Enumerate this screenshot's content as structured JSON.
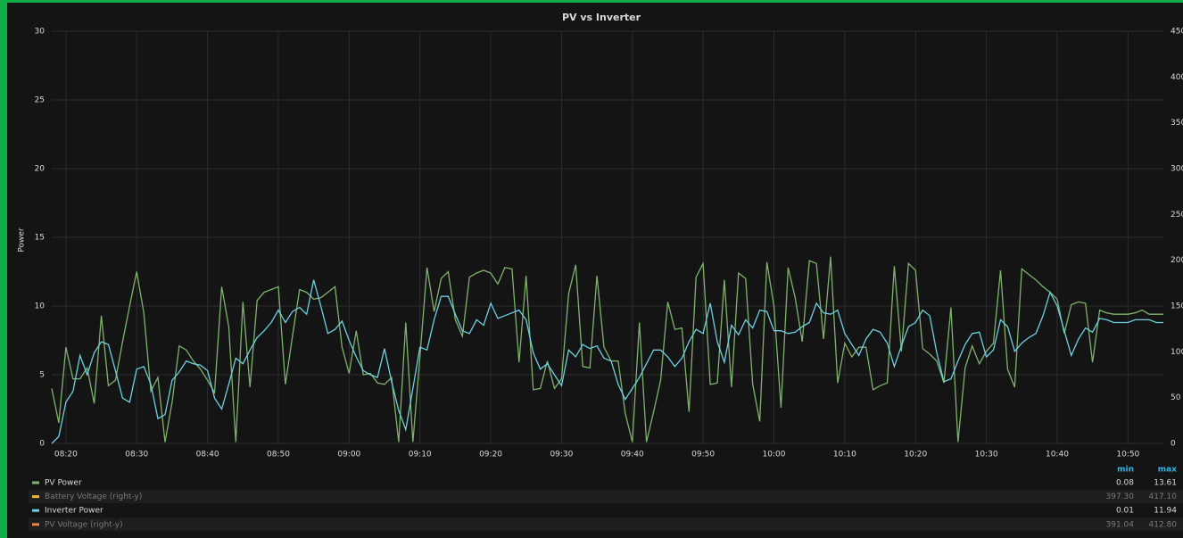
{
  "chart_data": {
    "type": "line",
    "title": "PV vs Inverter",
    "y_label": "Power",
    "x": [
      "08:18",
      "08:19",
      "08:20",
      "08:21",
      "08:22",
      "08:23",
      "08:24",
      "08:25",
      "08:26",
      "08:27",
      "08:28",
      "08:29",
      "08:30",
      "08:31",
      "08:32",
      "08:33",
      "08:34",
      "08:35",
      "08:36",
      "08:37",
      "08:38",
      "08:39",
      "08:40",
      "08:41",
      "08:42",
      "08:43",
      "08:44",
      "08:45",
      "08:46",
      "08:47",
      "08:48",
      "08:49",
      "08:50",
      "08:51",
      "08:52",
      "08:53",
      "08:54",
      "08:55",
      "08:56",
      "08:57",
      "08:58",
      "08:59",
      "09:00",
      "09:01",
      "09:02",
      "09:03",
      "09:04",
      "09:05",
      "09:06",
      "09:07",
      "09:08",
      "09:09",
      "09:10",
      "09:11",
      "09:12",
      "09:13",
      "09:14",
      "09:15",
      "09:16",
      "09:17",
      "09:18",
      "09:19",
      "09:20",
      "09:21",
      "09:22",
      "09:23",
      "09:24",
      "09:25",
      "09:26",
      "09:27",
      "09:28",
      "09:29",
      "09:30",
      "09:31",
      "09:32",
      "09:33",
      "09:34",
      "09:35",
      "09:36",
      "09:37",
      "09:38",
      "09:39",
      "09:40",
      "09:41",
      "09:42",
      "09:43",
      "09:44",
      "09:45",
      "09:46",
      "09:47",
      "09:48",
      "09:49",
      "09:50",
      "09:51",
      "09:52",
      "09:53",
      "09:54",
      "09:55",
      "09:56",
      "09:57",
      "09:58",
      "09:59",
      "10:00",
      "10:01",
      "10:02",
      "10:03",
      "10:04",
      "10:05",
      "10:06",
      "10:07",
      "10:08",
      "10:09",
      "10:10",
      "10:11",
      "10:12",
      "10:13",
      "10:14",
      "10:15",
      "10:16",
      "10:17",
      "10:18",
      "10:19",
      "10:20",
      "10:21",
      "10:22",
      "10:23",
      "10:24",
      "10:25",
      "10:26",
      "10:27",
      "10:28",
      "10:29",
      "10:30",
      "10:31",
      "10:32",
      "10:33",
      "10:34",
      "10:35",
      "10:36",
      "10:37",
      "10:38",
      "10:39",
      "10:40",
      "10:41",
      "10:42",
      "10:43",
      "10:44",
      "10:45",
      "10:46",
      "10:47",
      "10:48",
      "10:49",
      "10:50",
      "10:51",
      "10:52",
      "10:53",
      "10:54",
      "10:55"
    ],
    "xlim": [
      "08:18",
      "10:55"
    ],
    "xticks": [
      "08:20",
      "08:30",
      "08:40",
      "08:50",
      "09:00",
      "09:10",
      "09:20",
      "09:30",
      "09:40",
      "09:50",
      "10:00",
      "10:10",
      "10:20",
      "10:30",
      "10:40",
      "10:50"
    ],
    "ylim": [
      0,
      30
    ],
    "yticks": [
      0,
      5,
      10,
      15,
      20,
      25,
      30
    ],
    "y2lim": [
      0,
      450
    ],
    "y2ticks": [
      0,
      50,
      100,
      150,
      200,
      250,
      300,
      350,
      400,
      450
    ],
    "grid": true,
    "legend_headers": [
      "min",
      "max"
    ],
    "series": [
      {
        "name": "PV Power",
        "color": "#7eb26d",
        "min": "0.08",
        "max": "13.61",
        "values": [
          4,
          1.5,
          7,
          4.7,
          4.7,
          5.5,
          2.9,
          9.3,
          4.2,
          4.6,
          7.4,
          10,
          12.5,
          9.5,
          3.8,
          4.8,
          0.1,
          3,
          7.1,
          6.8,
          6,
          5.4,
          4.6,
          3.7,
          11.4,
          8.5,
          0.1,
          10.3,
          4.1,
          10.4,
          11,
          11.2,
          11.4,
          4.3,
          7.8,
          11.2,
          11,
          10.5,
          10.6,
          11,
          11.4,
          7,
          5.1,
          8.2,
          5,
          5.1,
          4.4,
          4.3,
          4.8,
          0.1,
          8.8,
          0.1,
          6.3,
          12.8,
          9.6,
          12,
          12.5,
          9,
          7.8,
          12.1,
          12.4,
          12.6,
          12.4,
          11.6,
          12.8,
          12.7,
          5.9,
          12.2,
          3.9,
          4,
          6,
          4,
          4.7,
          10.9,
          13,
          5.6,
          5.5,
          12.2,
          7,
          6,
          6,
          2.2,
          0.1,
          8.8,
          0.1,
          2.3,
          4.6,
          10.3,
          8.3,
          8.4,
          2.3,
          12.1,
          13.1,
          4.3,
          4.4,
          11.9,
          4.1,
          12.4,
          12,
          4.3,
          1.6,
          13.2,
          10,
          2.6,
          12.8,
          10.6,
          7.4,
          13.3,
          13.1,
          7.6,
          13.6,
          4.4,
          7.3,
          6.3,
          7,
          7,
          3.9,
          4.2,
          4.4,
          12.9,
          6.7,
          13.1,
          12.6,
          6.9,
          6.5,
          6,
          4.4,
          9.9,
          0.1,
          5.5,
          7.1,
          5.8,
          6.7,
          7.3,
          12.6,
          5.4,
          4.1,
          12.7,
          12.3,
          11.9,
          11.4,
          11,
          10.5,
          8,
          10.1,
          10.3,
          10.2,
          5.9,
          9.7,
          9.5,
          9.4,
          9.4,
          9.4,
          9.5,
          9.7,
          9.4,
          9.4,
          9.4
        ]
      },
      {
        "name": "Battery Voltage (right-y)",
        "color": "#eab839",
        "axis": "y2",
        "hidden": true,
        "min": "397.30",
        "max": "417.10"
      },
      {
        "name": "Inverter Power",
        "color": "#6ed0e0",
        "min": "0.01",
        "max": "11.94",
        "values": [
          0,
          0.5,
          3,
          3.8,
          6.4,
          5,
          6.6,
          7.4,
          7.2,
          5.3,
          3.3,
          3,
          5.4,
          5.6,
          4.3,
          1.8,
          2.1,
          4.6,
          5.2,
          6,
          5.8,
          5.7,
          5.3,
          3.3,
          2.5,
          4.3,
          6.2,
          5.8,
          6.8,
          7.7,
          8.2,
          8.8,
          9.7,
          8.8,
          9.6,
          9.9,
          9.4,
          11.9,
          10,
          8,
          8.3,
          8.9,
          7.5,
          6.3,
          5.3,
          5,
          4.8,
          6.9,
          4.5,
          2.4,
          1,
          4,
          7,
          6.8,
          9,
          10.7,
          10.7,
          9.4,
          8.2,
          8,
          9,
          8.6,
          10.2,
          9.1,
          9.3,
          9.5,
          9.7,
          9,
          6.6,
          5.4,
          5.8,
          5,
          4.2,
          6.8,
          6.3,
          7.2,
          6.9,
          7.1,
          6.2,
          6,
          4.3,
          3.2,
          4,
          4.8,
          5.8,
          6.8,
          6.8,
          6.3,
          5.6,
          6.2,
          7.4,
          8.3,
          8,
          10.2,
          7.4,
          5.9,
          8.6,
          7.9,
          9,
          8.4,
          9.7,
          9.6,
          8.2,
          8.2,
          8,
          8.1,
          8.5,
          8.8,
          10.2,
          9.5,
          9.4,
          9.7,
          8,
          7.2,
          6.4,
          7.6,
          8.3,
          8.1,
          7.3,
          5.6,
          7.1,
          8.5,
          8.8,
          9.7,
          9.3,
          6.6,
          4.5,
          4.7,
          6,
          7.2,
          8,
          8.1,
          6.3,
          6.8,
          9,
          8.5,
          6.7,
          7.3,
          7.7,
          8,
          9.3,
          11,
          10,
          8.2,
          6.4,
          7.6,
          8.4,
          8.1,
          9.1,
          9,
          8.8,
          8.8,
          8.8,
          9,
          9,
          9,
          8.8,
          8.8
        ]
      },
      {
        "name": "PV Voltage (right-y)",
        "color": "#ef843c",
        "axis": "y2",
        "hidden": true,
        "min": "391.04",
        "max": "412.80"
      }
    ]
  }
}
